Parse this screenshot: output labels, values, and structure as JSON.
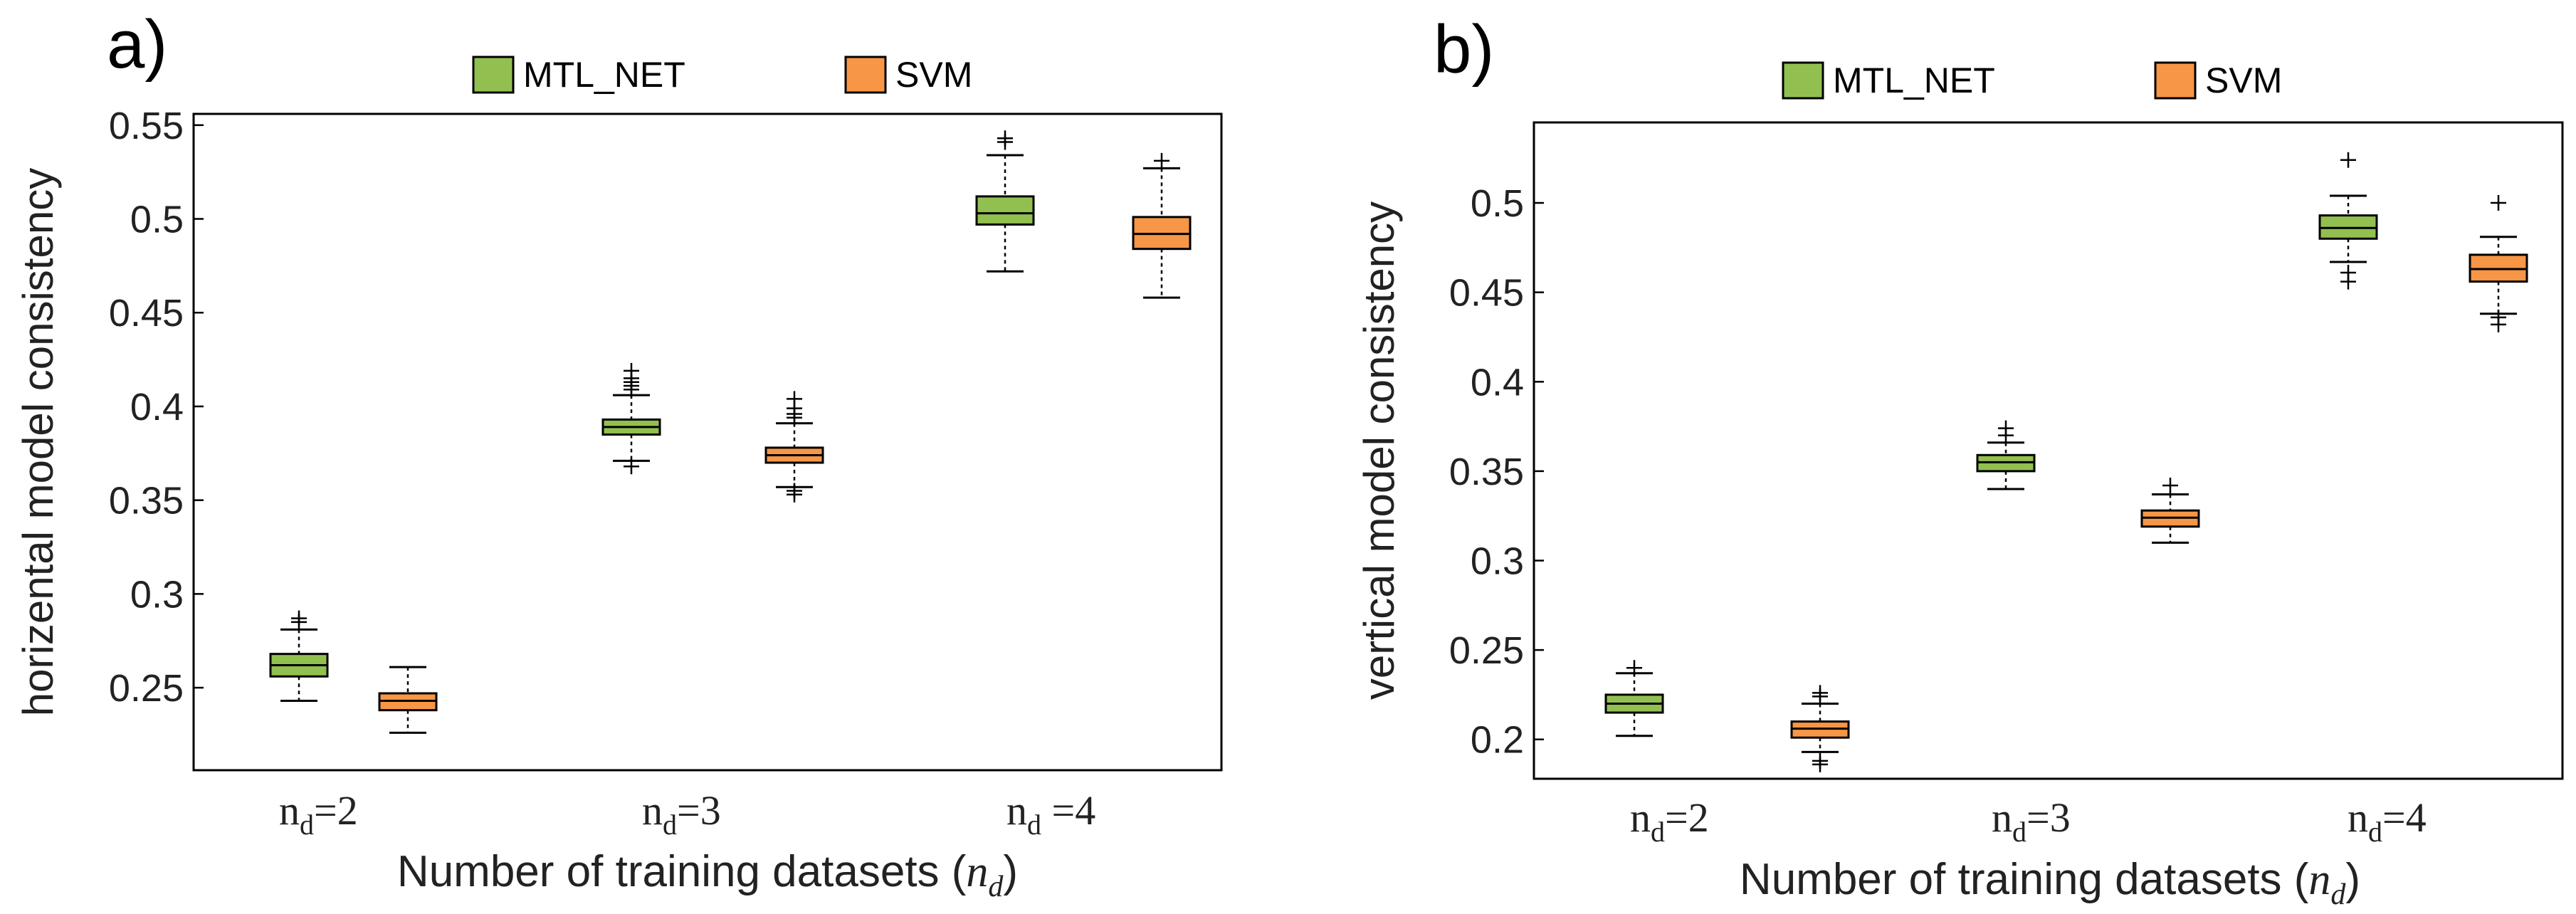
{
  "chart_data": [
    {
      "type": "boxplot",
      "panel_label": "a)",
      "legend": [
        {
          "name": "MTL_NET",
          "color": "#92c050"
        },
        {
          "name": "SVM",
          "color": "#f79646"
        }
      ],
      "ylabel": "horizental model consistency",
      "xlabel": "Number of training datasets",
      "xlabel_var": "n",
      "xlabel_sub": "d",
      "categories": [
        {
          "main": "n",
          "sub": "d",
          "eq": "=2"
        },
        {
          "main": "n",
          "sub": "d",
          "eq": "=3"
        },
        {
          "main": "n",
          "sub": "d",
          "eq": " =4"
        }
      ],
      "ylim": [
        0.206,
        0.556
      ],
      "yticks": [
        0.25,
        0.3,
        0.35,
        0.4,
        0.45,
        0.5,
        0.55
      ],
      "ytick_labels": [
        "0.25",
        "0.3",
        "0.35",
        "0.4",
        "0.45",
        "0.5",
        "0.55"
      ],
      "series": [
        {
          "name": "MTL_NET",
          "boxes": [
            {
              "whislo": 0.243,
              "q1": 0.256,
              "med": 0.262,
              "q3": 0.268,
              "whishi": 0.281,
              "fliers": [
                0.285,
                0.287
              ]
            },
            {
              "whislo": 0.371,
              "q1": 0.385,
              "med": 0.389,
              "q3": 0.393,
              "whishi": 0.406,
              "fliers": [
                0.409,
                0.411,
                0.413,
                0.415,
                0.419,
                0.368
              ]
            },
            {
              "whislo": 0.472,
              "q1": 0.497,
              "med": 0.503,
              "q3": 0.512,
              "whishi": 0.534,
              "fliers": [
                0.541,
                0.543
              ]
            }
          ]
        },
        {
          "name": "SVM",
          "boxes": [
            {
              "whislo": 0.226,
              "q1": 0.238,
              "med": 0.243,
              "q3": 0.247,
              "whishi": 0.261,
              "fliers": []
            },
            {
              "whislo": 0.357,
              "q1": 0.37,
              "med": 0.374,
              "q3": 0.378,
              "whishi": 0.391,
              "fliers": [
                0.394,
                0.396,
                0.399,
                0.404,
                0.355,
                0.353
              ]
            },
            {
              "whislo": 0.458,
              "q1": 0.484,
              "med": 0.492,
              "q3": 0.501,
              "whishi": 0.527,
              "fliers": [
                0.531
              ]
            }
          ]
        }
      ]
    },
    {
      "type": "boxplot",
      "panel_label": "b)",
      "legend": [
        {
          "name": "MTL_NET",
          "color": "#92c050"
        },
        {
          "name": "SVM",
          "color": "#f79646"
        }
      ],
      "ylabel": "vertical model consistency",
      "xlabel": "Number of training datasets",
      "xlabel_var": "n",
      "xlabel_sub": "d",
      "categories": [
        {
          "main": "n",
          "sub": "d",
          "eq": "=2"
        },
        {
          "main": "n",
          "sub": "d",
          "eq": "=3"
        },
        {
          "main": "n",
          "sub": "d",
          "eq": "=4"
        }
      ],
      "ylim": [
        0.178,
        0.545
      ],
      "yticks": [
        0.2,
        0.25,
        0.3,
        0.35,
        0.4,
        0.45,
        0.5
      ],
      "ytick_labels": [
        "0.2",
        "0.25",
        "0.3",
        "0.35",
        "0.4",
        "0.45",
        "0.5"
      ],
      "series": [
        {
          "name": "MTL_NET",
          "boxes": [
            {
              "whislo": 0.202,
              "q1": 0.215,
              "med": 0.22,
              "q3": 0.225,
              "whishi": 0.237,
              "fliers": [
                0.24
              ]
            },
            {
              "whislo": 0.34,
              "q1": 0.35,
              "med": 0.355,
              "q3": 0.359,
              "whishi": 0.366,
              "fliers": [
                0.37,
                0.374
              ]
            },
            {
              "whislo": 0.467,
              "q1": 0.48,
              "med": 0.486,
              "q3": 0.493,
              "whishi": 0.504,
              "fliers": [
                0.524,
                0.461,
                0.456
              ]
            }
          ]
        },
        {
          "name": "SVM",
          "boxes": [
            {
              "whislo": 0.193,
              "q1": 0.201,
              "med": 0.206,
              "q3": 0.21,
              "whishi": 0.22,
              "fliers": [
                0.224,
                0.226,
                0.188,
                0.186
              ]
            },
            {
              "whislo": 0.31,
              "q1": 0.319,
              "med": 0.324,
              "q3": 0.328,
              "whishi": 0.337,
              "fliers": [
                0.342
              ]
            },
            {
              "whislo": 0.438,
              "q1": 0.456,
              "med": 0.463,
              "q3": 0.471,
              "whishi": 0.481,
              "fliers": [
                0.5,
                0.436,
                0.432
              ]
            }
          ]
        }
      ]
    }
  ]
}
